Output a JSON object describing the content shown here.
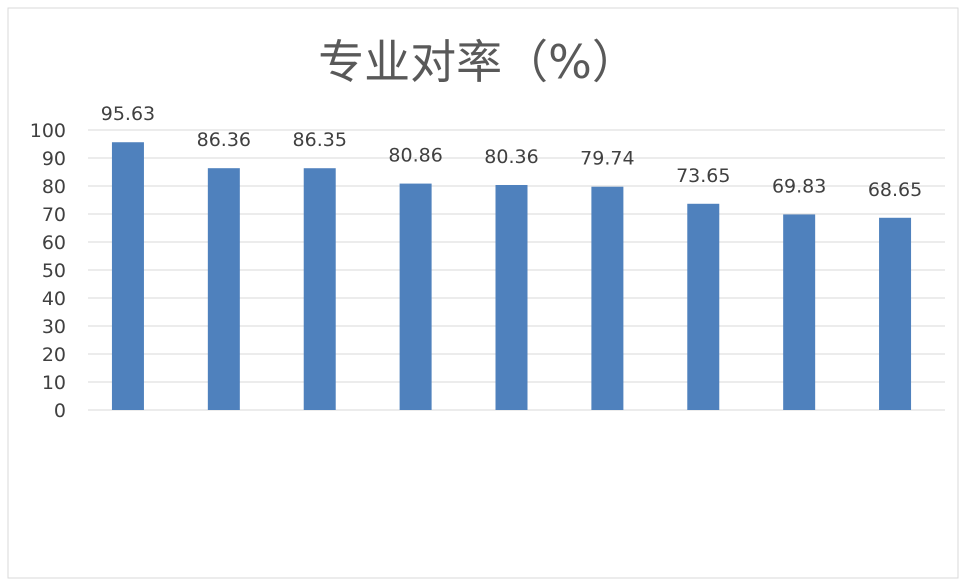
{
  "chart_data": {
    "type": "bar",
    "title": "专业对率（%）",
    "xlabel": "",
    "ylabel": "",
    "categories": [
      "",
      "",
      "",
      "",
      "",
      "",
      "",
      "",
      ""
    ],
    "values": [
      95.63,
      86.36,
      86.35,
      80.86,
      80.36,
      79.74,
      73.65,
      69.83,
      68.65
    ],
    "data_labels": [
      "95.63",
      "86.36",
      "86.35",
      "80.86",
      "80.36",
      "79.74",
      "73.65",
      "69.83",
      "68.65"
    ],
    "y_ticks": [
      0,
      10,
      20,
      30,
      40,
      50,
      60,
      70,
      80,
      90,
      100
    ],
    "y_tick_labels": [
      "0",
      "10",
      "20",
      "30",
      "40",
      "50",
      "60",
      "70",
      "80",
      "90",
      "100"
    ],
    "ylim": [
      0,
      100
    ],
    "grid": true,
    "legend": "none",
    "bar_color": "#4f81bd"
  }
}
